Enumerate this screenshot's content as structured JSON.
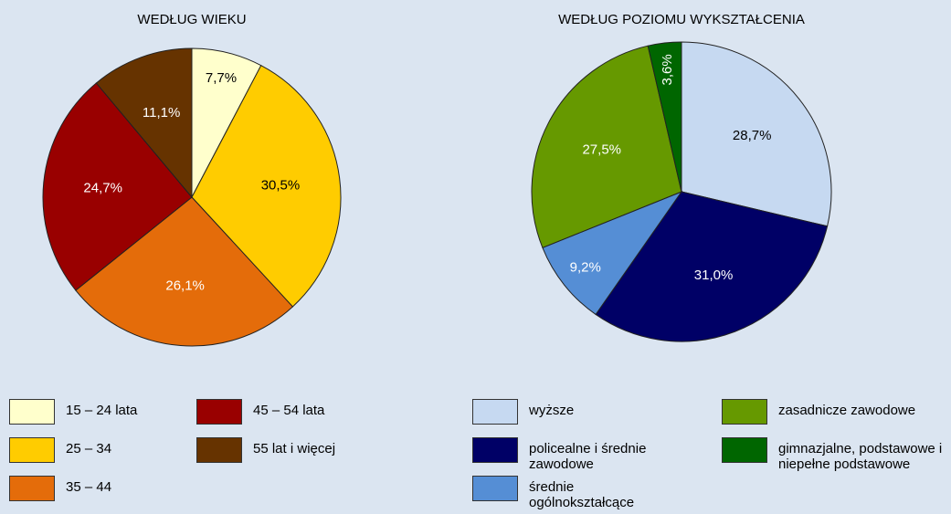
{
  "chart_data": [
    {
      "type": "pie",
      "title": "WEDŁUG WIEKU",
      "categories": [
        "15 – 24 lata",
        "25 – 34",
        "35 – 44",
        "45 – 54 lata",
        "55 lat i więcej"
      ],
      "values": [
        7.7,
        30.5,
        26.1,
        24.7,
        11.1
      ],
      "value_labels": [
        "7,7%",
        "30,5%",
        "26,1%",
        "24,7%",
        "11,1%"
      ],
      "colors": [
        "#ffffcc",
        "#ffcc00",
        "#e46c0a",
        "#990000",
        "#663300"
      ]
    },
    {
      "type": "pie",
      "title": "WEDŁUG POZIOMU WYKSZTAŁCENIA",
      "categories": [
        "wyższe",
        "policealne i średnie zawodowe",
        "średnie ogólnokształcące",
        "zasadnicze zawodowe",
        "gimnazjalne, podstawowe i niepełne podstawowe"
      ],
      "values": [
        28.7,
        31.0,
        9.2,
        27.5,
        3.6
      ],
      "value_labels": [
        "28,7%",
        "31,0%",
        "9,2%",
        "27,5%",
        "3,6%"
      ],
      "colors": [
        "#c6d9f1",
        "#000066",
        "#558ed5",
        "#669900",
        "#006600"
      ]
    }
  ]
}
